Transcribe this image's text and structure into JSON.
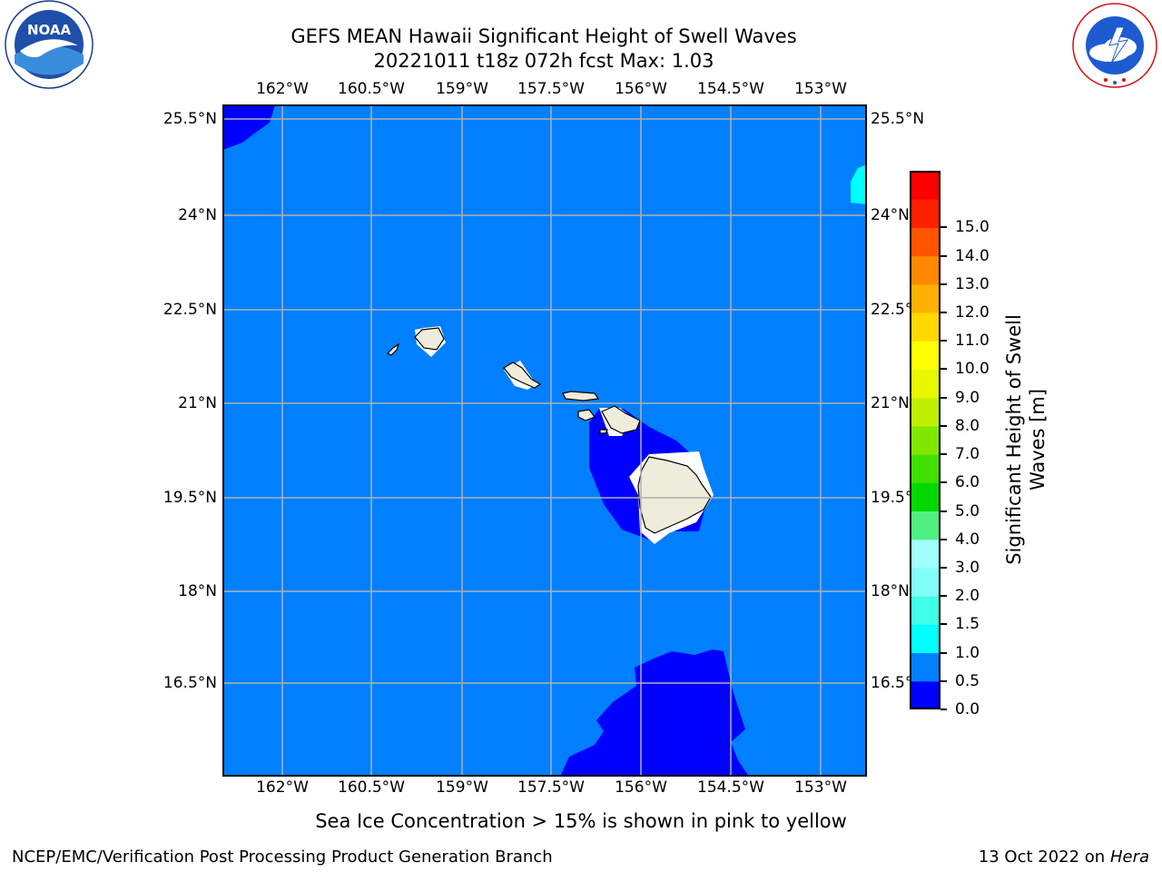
{
  "header": {
    "title_line1": "GEFS MEAN Hawaii Significant Height of Swell Waves",
    "title_line2": "20221011 t18z 072h fcst   Max: 1.03"
  },
  "logos": {
    "left": {
      "icon": "noaa-logo-icon",
      "text": "NOAA"
    },
    "right": {
      "icon": "nws-logo-icon",
      "text": "NATIONAL WEATHER SERVICE"
    }
  },
  "map": {
    "lon_labels": [
      "162°W",
      "160.5°W",
      "159°W",
      "157.5°W",
      "156°W",
      "154.5°W",
      "153°W"
    ],
    "lat_labels": [
      "25.5°N",
      "24°N",
      "22.5°N",
      "21°N",
      "19.5°N",
      "18°N",
      "16.5°N"
    ],
    "colors": {
      "ocean_base": "#0080ff",
      "low_swell": "#0000ff",
      "land": "#eeecda",
      "grid": "#b0b0b0"
    }
  },
  "colorbar": {
    "title_line1": "Significant Height of Swell",
    "title_line2": "Waves [m]",
    "labels": [
      "0.0",
      "0.5",
      "1.0",
      "1.5",
      "2.0",
      "3.0",
      "4.0",
      "5.0",
      "6.0",
      "7.0",
      "8.0",
      "9.0",
      "10.0",
      "11.0",
      "12.0",
      "13.0",
      "14.0",
      "15.0"
    ],
    "colors": [
      "#0000ff",
      "#0080ff",
      "#00ffff",
      "#40ffe8",
      "#80fff8",
      "#a0ffff",
      "#50f080",
      "#00d800",
      "#40e000",
      "#80e800",
      "#c0f000",
      "#e8f800",
      "#ffff00",
      "#ffd800",
      "#ffb000",
      "#ff8800",
      "#ff5500",
      "#ff2000",
      "#ff0000"
    ]
  },
  "note": "Sea Ice Concentration > 15% is shown in pink to yellow",
  "footer": {
    "left": "NCEP/EMC/Verification Post Processing Product Generation Branch",
    "right_date": "13 Oct 2022 on ",
    "right_host": "Hera"
  }
}
